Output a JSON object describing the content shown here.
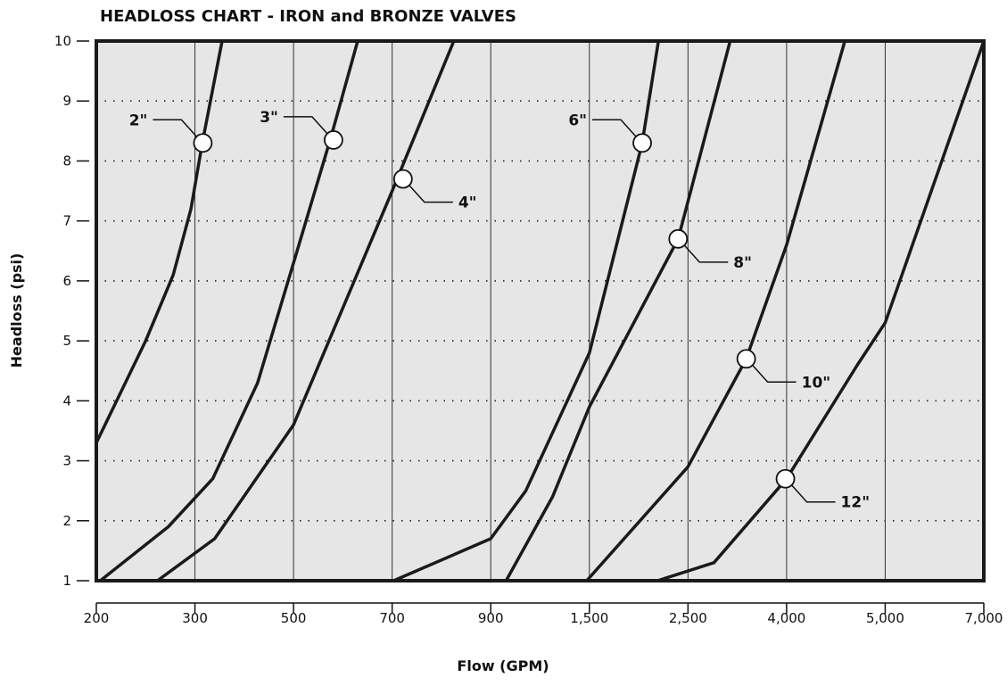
{
  "chart_data": {
    "type": "line",
    "title": "HEADLOSS CHART - IRON and BRONZE VALVES",
    "x_label": "Flow (GPM)",
    "y_label": "Headloss (psi)",
    "xlim": [
      200,
      7000
    ],
    "ylim": [
      1,
      10
    ],
    "xticks": [
      200,
      300,
      500,
      700,
      900,
      {
        "value": 1500,
        "label": "1,500"
      },
      {
        "value": 2500,
        "label": "2,500"
      },
      {
        "value": 4000,
        "label": "4,000"
      },
      {
        "value": 5000,
        "label": "5,000"
      },
      {
        "value": 7000,
        "label": "7,000"
      }
    ],
    "yticks": [
      1,
      2,
      3,
      4,
      5,
      6,
      7,
      8,
      9,
      10
    ],
    "grid": true,
    "color": "#1a1a1a",
    "series": [
      {
        "name": "2\"",
        "x": [
          200,
          250,
          278,
          296,
          315,
          355
        ],
        "y": [
          3.3,
          5,
          6.1,
          7.2,
          8.3,
          10
        ],
        "marker_x": 316,
        "marker_y": 8.3,
        "label_side": "left"
      },
      {
        "name": "3\"",
        "x": [
          204,
          273,
          336,
          427,
          500,
          576,
          630
        ],
        "y": [
          1,
          1.9,
          2.7,
          4.3,
          6.3,
          8.4,
          10
        ],
        "marker_x": 581,
        "marker_y": 8.35,
        "label_side": "left"
      },
      {
        "name": "4\"",
        "x": [
          262,
          340,
          500,
          700,
          825
        ],
        "y": [
          1,
          1.7,
          3.6,
          7.5,
          10
        ],
        "marker_x": 722,
        "marker_y": 7.7,
        "label_side": "right"
      },
      {
        "name": "6\"",
        "x": [
          703,
          900,
          1113,
          1500,
          2036,
          2200
        ],
        "y": [
          1,
          1.7,
          2.5,
          4.8,
          8.3,
          10
        ],
        "marker_x": 2036,
        "marker_y": 8.3,
        "label_side": "left"
      },
      {
        "name": "8\"",
        "x": [
          993,
          1276,
          1500,
          2400,
          3141
        ],
        "y": [
          1,
          2.4,
          3.9,
          6.7,
          10
        ],
        "marker_x": 2400,
        "marker_y": 6.7,
        "label_side": "right"
      },
      {
        "name": "10\"",
        "x": [
          1484,
          2500,
          3386,
          4000,
          4591
        ],
        "y": [
          1,
          2.9,
          4.7,
          6.6,
          10
        ],
        "marker_x": 3386,
        "marker_y": 4.7,
        "label_side": "right"
      },
      {
        "name": "12\"",
        "x": [
          2191,
          2895,
          4000,
          4718,
          5000,
          7000
        ],
        "y": [
          1,
          1.3,
          2.7,
          4.6,
          5.3,
          10
        ],
        "marker_x": 3982,
        "marker_y": 2.7,
        "label_side": "right"
      }
    ]
  }
}
